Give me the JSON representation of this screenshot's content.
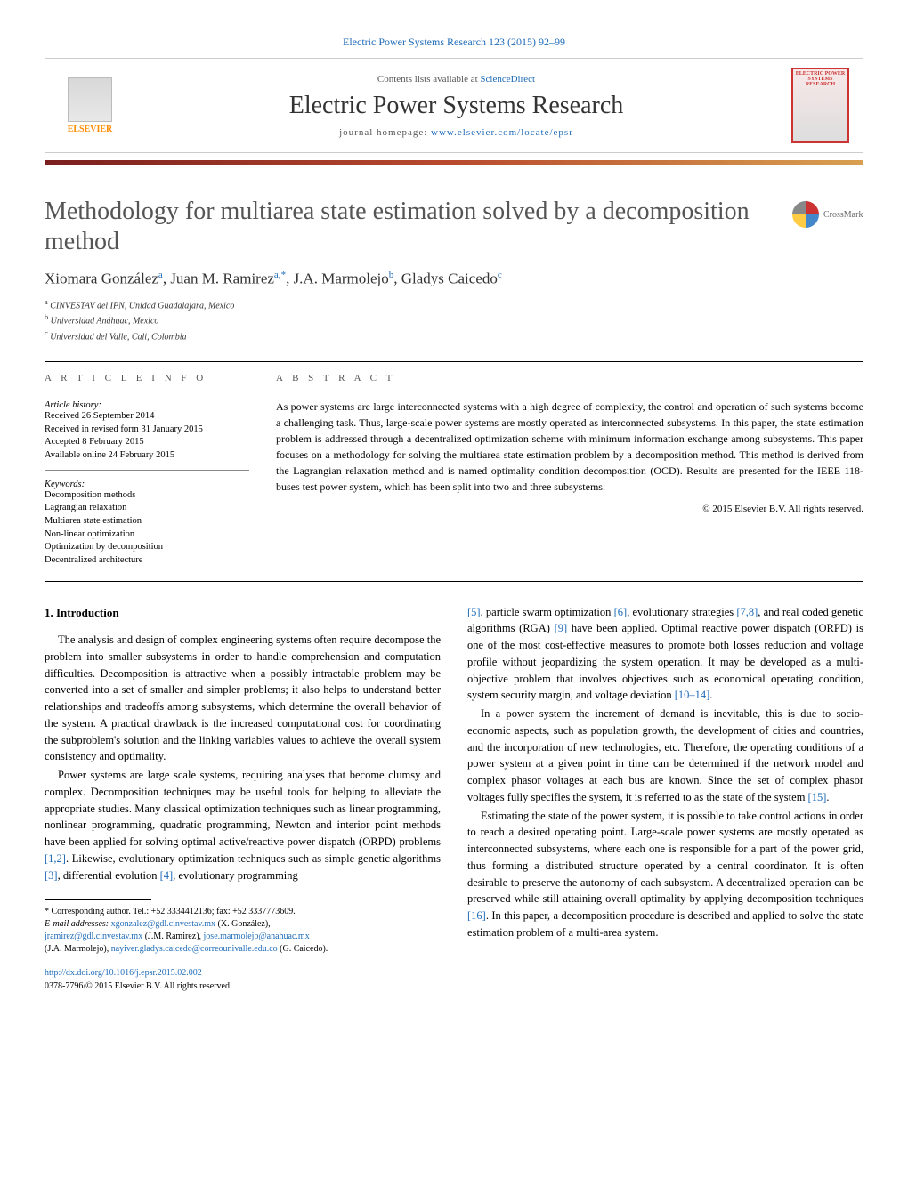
{
  "header": {
    "top_link": "Electric Power Systems Research 123 (2015) 92–99",
    "contents_prefix": "Contents lists available at ",
    "contents_link": "ScienceDirect",
    "journal_title": "Electric Power Systems Research",
    "homepage_prefix": "journal homepage: ",
    "homepage_link": "www.elsevier.com/locate/epsr",
    "elsevier_label": "ELSEVIER",
    "cover_text": "ELECTRIC POWER SYSTEMS RESEARCH",
    "crossmark": "CrossMark"
  },
  "colors": {
    "link": "#1e6bb8",
    "accent": "#ff8c00",
    "gradient_start": "#7a1f1f",
    "gradient_mid": "#b84a2e",
    "gradient_end": "#d8a050",
    "text": "#000000",
    "title_gray": "#555555"
  },
  "article": {
    "title": "Methodology for multiarea state estimation solved by a decomposition method",
    "authors_html": "Xiomara González<sup>a</sup>, Juan M. Ramirez<sup>a,*</sup>, J.A. Marmolejo<sup>b</sup>, Gladys Caicedo<sup>c</sup>",
    "affiliations": [
      "a CINVESTAV del IPN, Unidad Guadalajara, Mexico",
      "b Universidad Anáhuac, Mexico",
      "c Universidad del Valle, Cali, Colombia"
    ]
  },
  "info": {
    "heading": "A R T I C L E   I N F O",
    "history_label": "Article history:",
    "history": [
      "Received 26 September 2014",
      "Received in revised form 31 January 2015",
      "Accepted 8 February 2015",
      "Available online 24 February 2015"
    ],
    "keywords_label": "Keywords:",
    "keywords": [
      "Decomposition methods",
      "Lagrangian relaxation",
      "Multiarea state estimation",
      "Non-linear optimization",
      "Optimization by decomposition",
      "Decentralized architecture"
    ]
  },
  "abstract": {
    "heading": "A B S T R A C T",
    "text": "As power systems are large interconnected systems with a high degree of complexity, the control and operation of such systems become a challenging task. Thus, large-scale power systems are mostly operated as interconnected subsystems. In this paper, the state estimation problem is addressed through a decentralized optimization scheme with minimum information exchange among subsystems. This paper focuses on a methodology for solving the multiarea state estimation problem by a decomposition method. This method is derived from the Lagrangian relaxation method and is named optimality condition decomposition (OCD). Results are presented for the IEEE 118-buses test power system, which has been split into two and three subsystems.",
    "copyright": "© 2015 Elsevier B.V. All rights reserved."
  },
  "body": {
    "section_heading": "1. Introduction",
    "left_p1": "The analysis and design of complex engineering systems often require decompose the problem into smaller subsystems in order to handle comprehension and computation difficulties. Decomposition is attractive when a possibly intractable problem may be converted into a set of smaller and simpler problems; it also helps to understand better relationships and tradeoffs among subsystems, which determine the overall behavior of the system. A practical drawback is the increased computational cost for coordinating the subproblem's solution and the linking variables values to achieve the overall system consistency and optimality.",
    "left_p2_pre": "Power systems are large scale systems, requiring analyses that become clumsy and complex. Decomposition techniques may be useful tools for helping to alleviate the appropriate studies. Many classical optimization techniques such as linear programming, nonlinear programming, quadratic programming, Newton and interior point methods have been applied for solving optimal active/reactive power dispatch (ORPD) problems ",
    "left_p2_ref1": "[1,2]",
    "left_p2_mid": ". Likewise, evolutionary optimization techniques such as simple genetic algorithms ",
    "left_p2_ref2": "[3]",
    "left_p2_mid2": ", differential evolution ",
    "left_p2_ref3": "[4]",
    "left_p2_end": ", evolutionary programming",
    "right_p1_ref1": "[5]",
    "right_p1_a": ", particle swarm optimization ",
    "right_p1_ref2": "[6]",
    "right_p1_b": ", evolutionary strategies ",
    "right_p1_ref3": "[7,8]",
    "right_p1_c": ", and real coded genetic algorithms (RGA) ",
    "right_p1_ref4": "[9]",
    "right_p1_d": " have been applied. Optimal reactive power dispatch (ORPD) is one of the most cost-effective measures to promote both losses reduction and voltage profile without jeopardizing the system operation. It may be developed as a multi-objective problem that involves objectives such as economical operating condition, system security margin, and voltage deviation ",
    "right_p1_ref5": "[10–14]",
    "right_p1_e": ".",
    "right_p2_a": "In a power system the increment of demand is inevitable, this is due to socio-economic aspects, such as population growth, the development of cities and countries, and the incorporation of new technologies, etc. Therefore, the operating conditions of a power system at a given point in time can be determined if the network model and complex phasor voltages at each bus are known. Since the set of complex phasor voltages fully specifies the system, it is referred to as the state of the system ",
    "right_p2_ref": "[15]",
    "right_p2_b": ".",
    "right_p3_a": "Estimating the state of the power system, it is possible to take control actions in order to reach a desired operating point. Large-scale power systems are mostly operated as interconnected subsystems, where each one is responsible for a part of the power grid, thus forming a distributed structure operated by a central coordinator. It is often desirable to preserve the autonomy of each subsystem. A decentralized operation can be preserved while still attaining overall optimality by applying decomposition techniques ",
    "right_p3_ref": "[16]",
    "right_p3_b": ". In this paper, a decomposition procedure is described and applied to solve the state estimation problem of a multi-area system."
  },
  "footnotes": {
    "corresponding": "* Corresponding author. Tel.: +52 3334412136; fax: +52 3337773609.",
    "email_label": "E-mail addresses: ",
    "email1": "xgonzalez@gdl.cinvestav.mx",
    "email1_who": " (X. González),",
    "email2": "jramirez@gdl.cinvestav.mx",
    "email2_who": " (J.M. Ramirez), ",
    "email3": "jose.marmolejo@anahuac.mx",
    "email3_who": "(J.A. Marmolejo), ",
    "email4": "nayiver.gladys.caicedo@correounivalle.edu.co",
    "email4_who": " (G. Caicedo)."
  },
  "doi": {
    "link": "http://dx.doi.org/10.1016/j.epsr.2015.02.002",
    "issn": "0378-7796/© 2015 Elsevier B.V. All rights reserved."
  }
}
